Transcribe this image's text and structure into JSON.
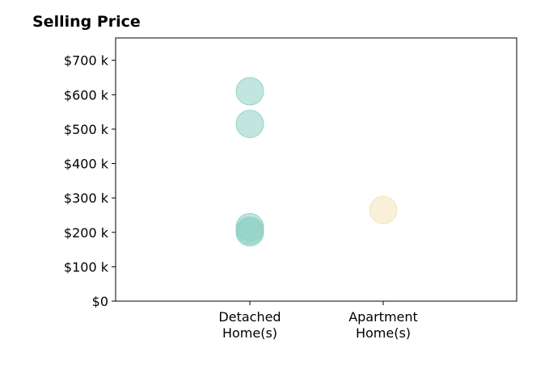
{
  "chart_data": {
    "type": "scatter",
    "title": "Selling Price",
    "xlabel": "",
    "ylabel": "",
    "categories": [
      [
        "Detached",
        "Home(s)"
      ],
      [
        "Apartment",
        "Home(s)"
      ]
    ],
    "ylim": [
      0,
      765000
    ],
    "yticks": [
      0,
      100000,
      200000,
      300000,
      400000,
      500000,
      600000,
      700000
    ],
    "ytick_labels": [
      "$0",
      "$100 k",
      "$200 k",
      "$300 k",
      "$400 k",
      "$500 k",
      "$600 k",
      "$700 k"
    ],
    "grid": false,
    "series": [
      {
        "category_index": 0,
        "color": "#8ecfc4",
        "values": [
          610000,
          515000,
          215000,
          205000,
          200000
        ]
      },
      {
        "category_index": 1,
        "color": "#f5e2b8",
        "values": [
          265000
        ]
      }
    ]
  }
}
